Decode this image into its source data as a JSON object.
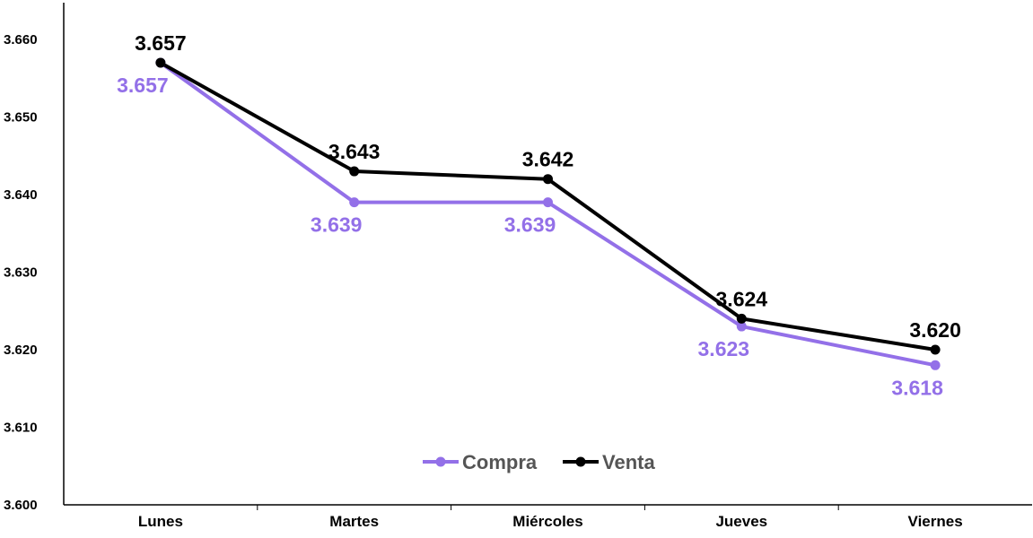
{
  "chart_data": {
    "type": "line",
    "categories": [
      "Lunes",
      "Martes",
      "Miércoles",
      "Jueves",
      "Viernes"
    ],
    "series": [
      {
        "name": "Compra",
        "color": "#9370e8",
        "values": [
          3.657,
          3.639,
          3.639,
          3.623,
          3.618
        ],
        "labels": [
          "3.657",
          "3.639",
          "3.639",
          "3.623",
          "3.618"
        ],
        "label_position": "below"
      },
      {
        "name": "Venta",
        "color": "#000000",
        "values": [
          3.657,
          3.643,
          3.642,
          3.624,
          3.62
        ],
        "labels": [
          "3.657",
          "3.643",
          "3.642",
          "3.624",
          "3.620"
        ],
        "label_position": "above"
      }
    ],
    "ylim": [
      3.6,
      3.66
    ],
    "yticks": [
      {
        "value": 3.6,
        "label": "3.600"
      },
      {
        "value": 3.61,
        "label": "3.610"
      },
      {
        "value": 3.62,
        "label": "3.620"
      },
      {
        "value": 3.63,
        "label": "3.630"
      },
      {
        "value": 3.64,
        "label": "3.640"
      },
      {
        "value": 3.65,
        "label": "3.650"
      },
      {
        "value": 3.66,
        "label": "3.660"
      }
    ],
    "title": "",
    "xlabel": "",
    "ylabel": "",
    "grid": false,
    "legend_position": "bottom-center"
  }
}
